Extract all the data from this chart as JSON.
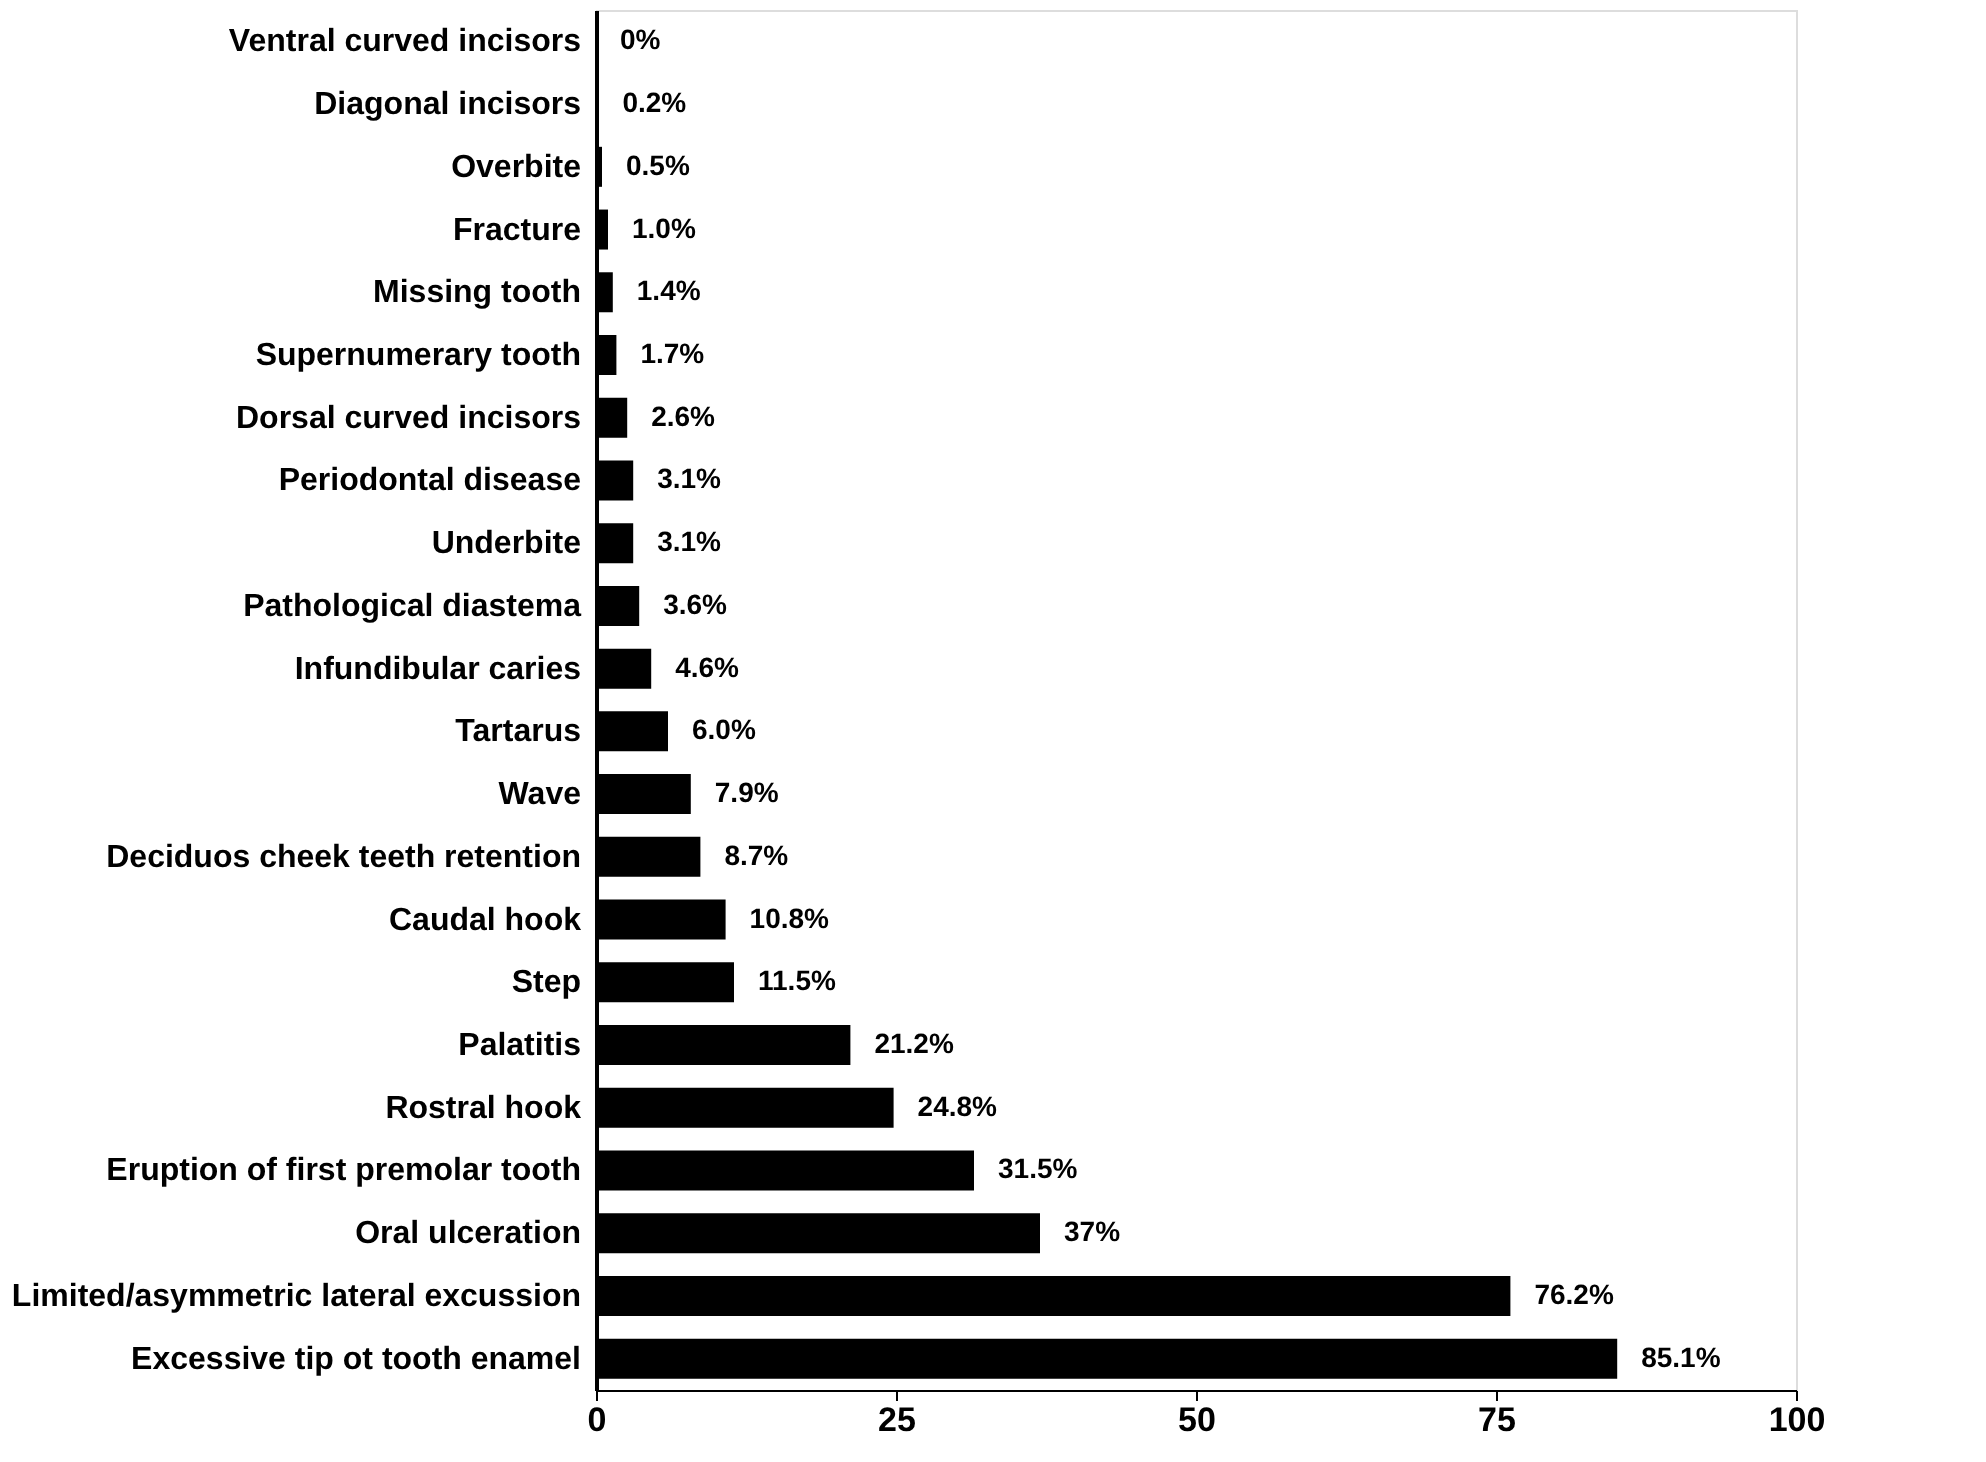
{
  "chart_data": {
    "type": "bar",
    "orientation": "horizontal",
    "categories": [
      "Ventral curved incisors",
      "Diagonal incisors",
      "Overbite",
      "Fracture",
      "Missing tooth",
      "Supernumerary tooth",
      "Dorsal curved incisors",
      "Periodontal disease",
      "Underbite",
      "Pathological diastema",
      "Infundibular caries",
      "Tartarus",
      "Wave",
      "Deciduos cheek teeth retention",
      "Caudal hook",
      "Step",
      "Palatitis",
      "Rostral hook",
      "Eruption of first premolar tooth",
      "Oral ulceration",
      "Limited/asymmetric lateral excussion",
      "Excessive tip ot tooth enamel"
    ],
    "values": [
      0,
      0.2,
      0.5,
      1.0,
      1.4,
      1.7,
      2.6,
      3.1,
      3.1,
      3.6,
      4.6,
      6.0,
      7.9,
      8.7,
      10.8,
      11.5,
      21.2,
      24.8,
      31.5,
      37,
      76.2,
      85.1
    ],
    "value_labels": [
      "0%",
      "0.2%",
      "0.5%",
      "1.0%",
      "1.4%",
      "1.7%",
      "2.6%",
      "3.1%",
      "3.1%",
      "3.6%",
      "4.6%",
      "6.0%",
      "7.9%",
      "8.7%",
      "10.8%",
      "11.5%",
      "21.2%",
      "24.8%",
      "31.5%",
      "37%",
      "76.2%",
      "85.1%"
    ],
    "color": "#000000",
    "xlim": [
      0,
      100
    ],
    "xticks": [
      0,
      25,
      50,
      75,
      100
    ],
    "grid": false
  }
}
